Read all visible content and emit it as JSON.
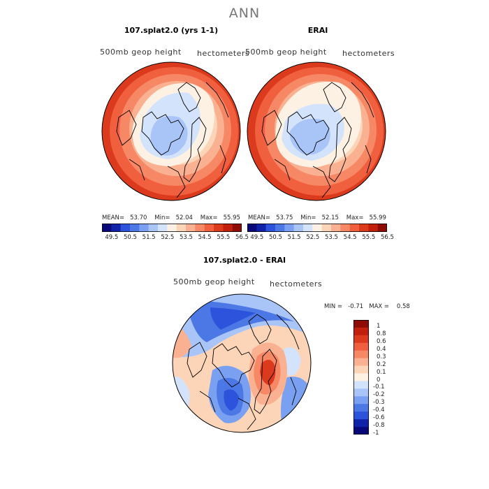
{
  "title": "ANN",
  "panels": [
    {
      "title": "107.splat2.0 (yrs 1-1)",
      "field": "500mb geop height",
      "units": "hectometers",
      "mean_label": "MEAN=",
      "mean": "53.70",
      "min_label": "Min=",
      "min": "52.04",
      "max_label": "Max=",
      "max": "55.95"
    },
    {
      "title": "ERAI",
      "field": "500mb geop height",
      "units": "hectometers",
      "mean_label": "MEAN=",
      "mean": "53.75",
      "min_label": "Min=",
      "min": "52.15",
      "max_label": "Max=",
      "max": "55.99"
    }
  ],
  "diff": {
    "title": "107.splat2.0 - ERAI",
    "field": "500mb geop height",
    "units": "hectometers",
    "min_label": "MIN =",
    "min": "-0.71",
    "max_label": "MAX =",
    "max": "0.58"
  },
  "colorbar_top": {
    "labels": [
      "49.5",
      "50.5",
      "51.5",
      "52.5",
      "53.5",
      "54.5",
      "55.5",
      "56.5"
    ],
    "colors": [
      "#08087a",
      "#1022a8",
      "#2d52dc",
      "#4c78e6",
      "#7aa0f2",
      "#a9c5f8",
      "#d3e3fb",
      "#fdf1e4",
      "#fcd5b9",
      "#fab191",
      "#f78866",
      "#f0603f",
      "#dc3a1c",
      "#c0200c",
      "#8e0c05"
    ]
  },
  "colorbar_diff": {
    "labels": [
      "1",
      "0.8",
      "0.6",
      "0.4",
      "0.3",
      "0.2",
      "0.1",
      "0",
      "-0.1",
      "-0.2",
      "-0.3",
      "-0.4",
      "-0.6",
      "-0.8",
      "-1"
    ],
    "colors": [
      "#8e0c05",
      "#c0200c",
      "#dc3a1c",
      "#f0603f",
      "#f78866",
      "#fab191",
      "#fcd5b9",
      "#fdf1e4",
      "#d3e3fb",
      "#a9c5f8",
      "#7aa0f2",
      "#4c78e6",
      "#2d52dc",
      "#1022a8",
      "#08087a"
    ]
  },
  "chart_data": [
    {
      "type": "heatmap",
      "title": "107.splat2.0 (yrs 1-1)",
      "subtitle": "500mb geop height",
      "units": "hectometers",
      "mean": 53.7,
      "min": 52.04,
      "max": 55.95,
      "levels": [
        49.5,
        50.5,
        51.5,
        52.5,
        53.5,
        54.5,
        55.5,
        56.5
      ]
    },
    {
      "type": "heatmap",
      "title": "ERAI",
      "subtitle": "500mb geop height",
      "units": "hectometers",
      "mean": 53.75,
      "min": 52.15,
      "max": 55.99,
      "levels": [
        49.5,
        50.5,
        51.5,
        52.5,
        53.5,
        54.5,
        55.5,
        56.5
      ]
    },
    {
      "type": "heatmap",
      "title": "107.splat2.0 - ERAI",
      "subtitle": "500mb geop height",
      "units": "hectometers",
      "min": -0.71,
      "max": 0.58,
      "levels": [
        -1,
        -0.8,
        -0.6,
        -0.4,
        -0.3,
        -0.2,
        -0.1,
        0,
        0.1,
        0.2,
        0.3,
        0.4,
        0.6,
        0.8,
        1
      ]
    }
  ]
}
